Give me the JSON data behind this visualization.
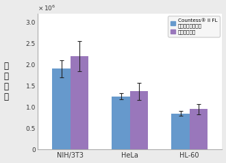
{
  "categories": [
    "NIH/3T3",
    "HeLa",
    "HL-60"
  ],
  "blue_values": [
    1900000.0,
    1250000.0,
    850000.0
  ],
  "purple_values": [
    2200000.0,
    1370000.0,
    950000.0
  ],
  "blue_errors": [
    200000.0,
    70000.0,
    50000.0
  ],
  "purple_errors": [
    350000.0,
    200000.0,
    120000.0
  ],
  "blue_color": "#6699cc",
  "purple_color": "#9977bb",
  "ylabel": "细\n胞\n计\n数",
  "ylim": [
    0,
    3200000.0
  ],
  "yticks": [
    0,
    500000.0,
    1000000.0,
    1500000.0,
    2000000.0,
    2500000.0,
    3000000.0
  ],
  "legend_label1_line1": "Countess® II FL",
  "legend_label1_line2": "全自动细胞计数仪",
  "legend_label2": "血细胞计数仪",
  "bar_width": 0.3,
  "background_color": "#ebebeb"
}
